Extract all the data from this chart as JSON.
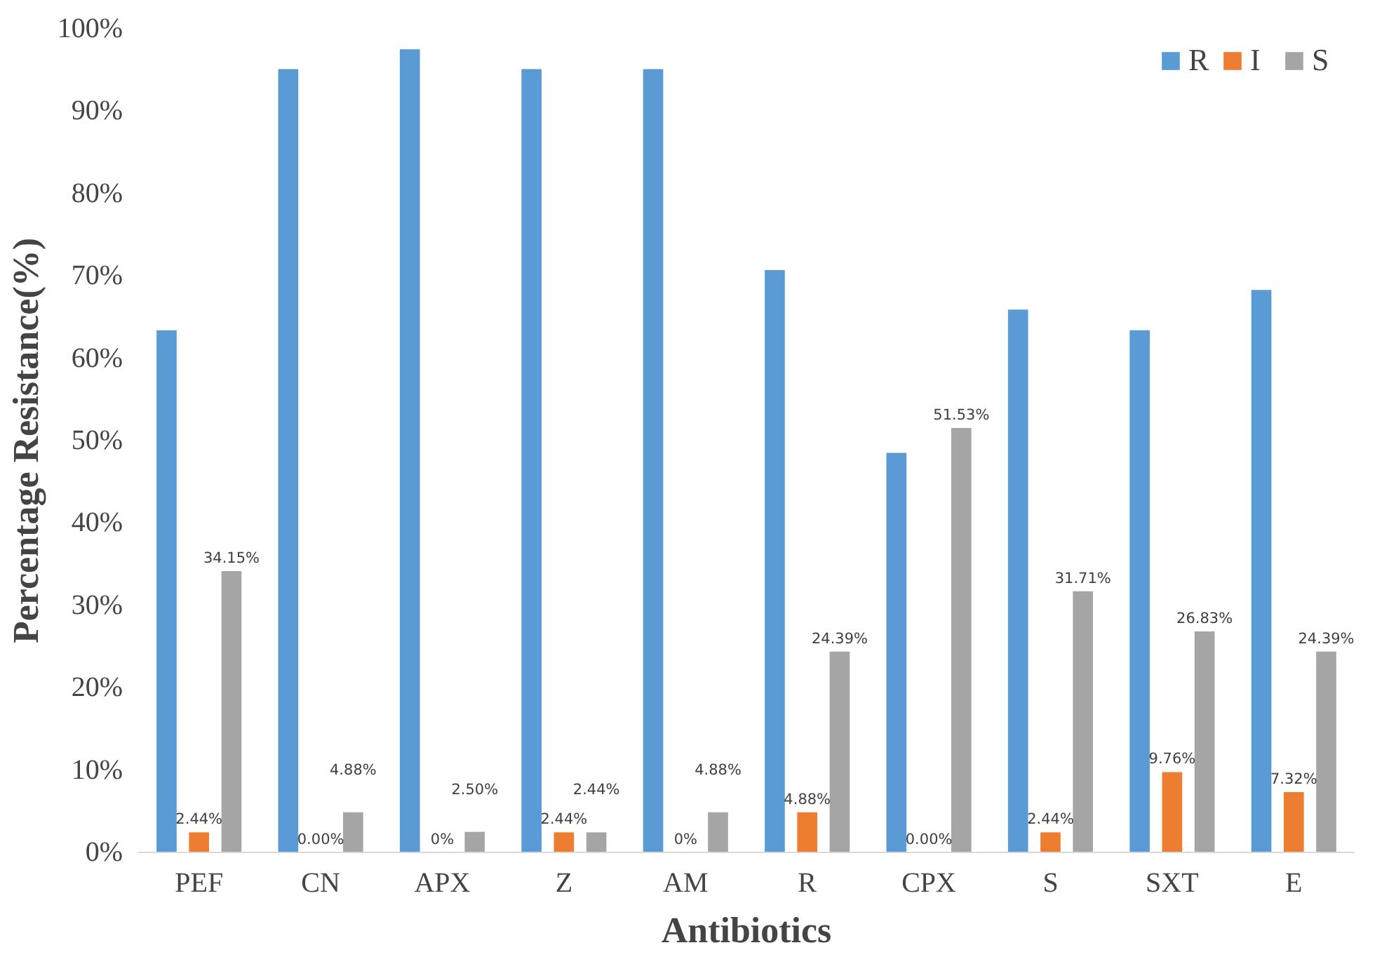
{
  "chart_data": {
    "type": "bar",
    "xlabel": "Antibiotics",
    "ylabel": "Percentage Resistance(%)",
    "categories": [
      "PEF",
      "CN",
      "APX",
      "Z",
      "AM",
      "R",
      "CPX",
      "S",
      "SXT",
      "E"
    ],
    "series": [
      {
        "name": "R",
        "color": "#5b9bd5",
        "values": [
          63.4,
          95.1,
          97.5,
          95.1,
          95.1,
          70.7,
          48.5,
          65.9,
          63.4,
          68.3
        ]
      },
      {
        "name": "I",
        "color": "#ed7d31",
        "values": [
          2.44,
          0,
          0,
          2.44,
          0,
          4.88,
          0,
          2.44,
          9.76,
          7.32
        ],
        "value_labels": [
          "2.44%",
          "0.00%",
          "0%",
          "2.44%",
          "0%",
          "4.88%",
          "0.00%",
          "2.44%",
          "9.76%",
          "7.32%"
        ]
      },
      {
        "name": "S",
        "color": "#a5a5a5",
        "values": [
          34.15,
          4.88,
          2.5,
          2.44,
          4.88,
          24.39,
          51.53,
          31.71,
          26.83,
          24.39
        ],
        "value_labels": [
          "34.15%",
          "4.88%",
          "2.50%",
          "2.44%",
          "4.88%",
          "24.39%",
          "51.53%",
          "31.71%",
          "26.83%",
          "24.39%"
        ]
      }
    ],
    "ylim": [
      0,
      100
    ],
    "yticks": [
      {
        "value": 0,
        "label": "0%"
      },
      {
        "value": 10,
        "label": "10%"
      },
      {
        "value": 20,
        "label": "20%"
      },
      {
        "value": 30,
        "label": "30%"
      },
      {
        "value": 40,
        "label": "40%"
      },
      {
        "value": 50,
        "label": "50%"
      },
      {
        "value": 60,
        "label": "60%"
      },
      {
        "value": 70,
        "label": "70%"
      },
      {
        "value": 80,
        "label": "80%"
      },
      {
        "value": 90,
        "label": "90%"
      },
      {
        "value": 100,
        "label": "100%"
      }
    ],
    "legend": "top right"
  }
}
